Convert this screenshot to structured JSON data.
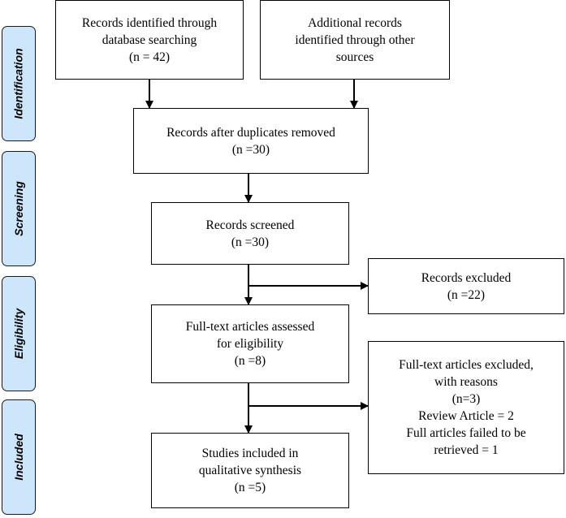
{
  "phases": {
    "identification": "Identification",
    "screening": "Screening",
    "eligibility": "Eligibility",
    "included": "Included"
  },
  "boxes": {
    "database": {
      "line1": "Records identified through",
      "line2": "database searching",
      "line3": "(n = 42)"
    },
    "other_sources": {
      "line1": "Additional records",
      "line2": "identified through other",
      "line3": "sources"
    },
    "duplicates_removed": {
      "line1": "Records after duplicates removed",
      "line2": "(n =30)"
    },
    "screened": {
      "line1": "Records screened",
      "line2": "(n =30)"
    },
    "excluded": {
      "line1": "Records excluded",
      "line2": "(n =22)"
    },
    "fulltext_assessed": {
      "line1": "Full-text articles assessed",
      "line2": "for eligibility",
      "line3": "(n =8)"
    },
    "fulltext_excluded": {
      "line1": "Full-text articles excluded,",
      "line2": "with reasons",
      "line3": "(n=3)",
      "line4": "Review Article = 2",
      "line5": "Full articles failed to be",
      "line6": "retrieved = 1"
    },
    "included": {
      "line1": "Studies included in",
      "line2": "qualitative synthesis",
      "line3": "(n =5)"
    }
  },
  "colors": {
    "phase_fill": "#cde6fb",
    "line": "#000000"
  }
}
